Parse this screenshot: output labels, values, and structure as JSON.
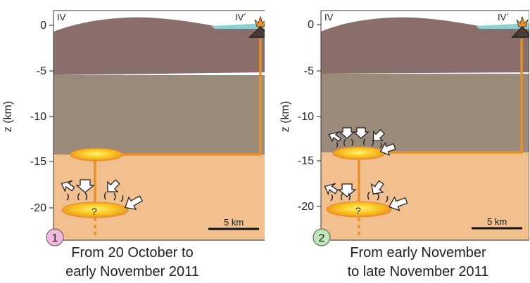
{
  "panels": [
    {
      "number": "1",
      "section_left": "IV",
      "section_right": "IV´",
      "caption_line1": "From 20 October to",
      "caption_line2": "early November 2011",
      "depth_ticks": [
        "0",
        "-5",
        "-10",
        "-15",
        "-20"
      ],
      "axis_label": "z (km)",
      "scale_label": "5 km",
      "chamber_label": "?",
      "badge_color": "#f2b8dd"
    },
    {
      "number": "2",
      "section_left": "IV",
      "section_right": "IV´",
      "caption_line1": "From early November",
      "caption_line2": "to late November  2011",
      "depth_ticks": [
        "0",
        "-5",
        "-10",
        "-15",
        "-20"
      ],
      "axis_label": "z (km)",
      "scale_label": "5 km",
      "chamber_label": "?",
      "badge_color": "#bfe6b9"
    }
  ],
  "colors": {
    "sea": "#8fd0d4",
    "upper_crust": "#8a6e6a",
    "middle_crust": "#9a8a7a",
    "lower_crust": "#f2c08e",
    "conduit": "#e8912c"
  }
}
